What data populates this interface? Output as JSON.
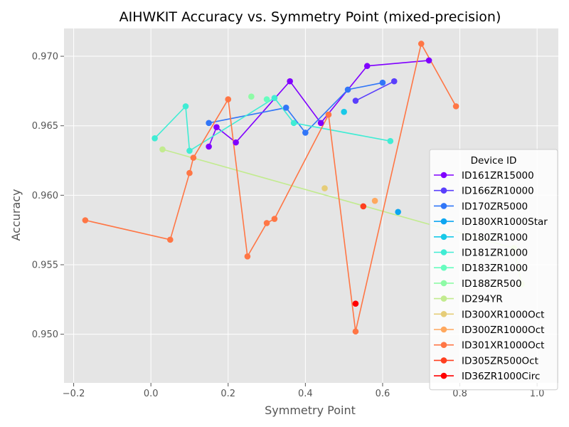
{
  "chart_data": {
    "type": "line",
    "title": "AIHWKIT Accuracy vs. Symmetry Point (mixed-precision)",
    "xlabel": "Symmetry Point",
    "ylabel": "Accuracy",
    "xlim": [
      -0.225,
      1.055
    ],
    "ylim": [
      0.9465,
      0.972
    ],
    "xticks": [
      -0.2,
      0.0,
      0.2,
      0.4,
      0.6,
      0.8,
      1.0
    ],
    "xtick_labels": [
      "−0.2",
      "0.0",
      "0.2",
      "0.4",
      "0.6",
      "0.8",
      "1.0"
    ],
    "yticks": [
      0.95,
      0.955,
      0.96,
      0.965,
      0.97
    ],
    "ytick_labels": [
      "0.950",
      "0.955",
      "0.960",
      "0.965",
      "0.970"
    ],
    "grid": true,
    "legend_title": "Device ID",
    "legend_position": "lower-right",
    "series": [
      {
        "name": "ID161ZR15000",
        "color": "#8000ff",
        "points": [
          [
            0.15,
            0.9635
          ],
          [
            0.17,
            0.9649
          ],
          [
            0.22,
            0.9638
          ],
          [
            0.36,
            0.9682
          ],
          [
            0.44,
            0.9652
          ],
          [
            0.56,
            0.9693
          ],
          [
            0.72,
            0.9697
          ]
        ]
      },
      {
        "name": "ID166ZR10000",
        "color": "#5a3ffc",
        "points": [
          [
            0.53,
            0.9668
          ],
          [
            0.63,
            0.9682
          ]
        ]
      },
      {
        "name": "ID170ZR5000",
        "color": "#3176f8",
        "points": [
          [
            0.15,
            0.9652
          ],
          [
            0.35,
            0.9663
          ],
          [
            0.4,
            0.9645
          ],
          [
            0.51,
            0.9676
          ],
          [
            0.6,
            0.9681
          ]
        ]
      },
      {
        "name": "ID180XR1000Star",
        "color": "#0da6f0",
        "points": [
          [
            0.64,
            0.9588
          ]
        ]
      },
      {
        "name": "ID180ZR1000",
        "color": "#18c9e8",
        "points": [
          [
            0.5,
            0.966
          ]
        ]
      },
      {
        "name": "ID181ZR1000",
        "color": "#40ecd4",
        "points": [
          [
            0.01,
            0.9641
          ],
          [
            0.09,
            0.9664
          ],
          [
            0.1,
            0.9632
          ],
          [
            0.32,
            0.967
          ],
          [
            0.37,
            0.9652
          ],
          [
            0.62,
            0.9639
          ]
        ]
      },
      {
        "name": "ID183ZR1000",
        "color": "#67fdbf",
        "points": [
          [
            0.3,
            0.9669
          ]
        ]
      },
      {
        "name": "ID188ZR500",
        "color": "#8efba6",
        "points": [
          [
            0.26,
            0.9671
          ]
        ]
      },
      {
        "name": "ID294YR",
        "color": "#c2eb8f",
        "points": [
          [
            0.03,
            0.9633
          ],
          [
            0.94,
            0.9562
          ],
          [
            0.96,
            0.9536
          ]
        ]
      },
      {
        "name": "ID300XR1000Oct",
        "color": "#e6cd78",
        "points": [
          [
            0.45,
            0.9605
          ]
        ]
      },
      {
        "name": "ID300ZR1000Oct",
        "color": "#ffa85e",
        "points": [
          [
            0.58,
            0.9596
          ]
        ]
      },
      {
        "name": "ID301XR1000Oct",
        "color": "#ff7645",
        "points": [
          [
            -0.17,
            0.9582
          ],
          [
            0.05,
            0.9568
          ],
          [
            0.1,
            0.9616
          ],
          [
            0.11,
            0.9627
          ],
          [
            0.2,
            0.9669
          ],
          [
            0.25,
            0.9556
          ],
          [
            0.3,
            0.958
          ],
          [
            0.32,
            0.9583
          ],
          [
            0.46,
            0.9658
          ],
          [
            0.53,
            0.9502
          ],
          [
            0.7,
            0.9709
          ],
          [
            0.79,
            0.9664
          ]
        ]
      },
      {
        "name": "ID305ZR500Oct",
        "color": "#ff3f20",
        "points": [
          [
            0.55,
            0.9592
          ]
        ]
      },
      {
        "name": "ID36ZR1000Circ",
        "color": "#ff0000",
        "points": [
          [
            0.53,
            0.9522
          ]
        ]
      }
    ]
  }
}
